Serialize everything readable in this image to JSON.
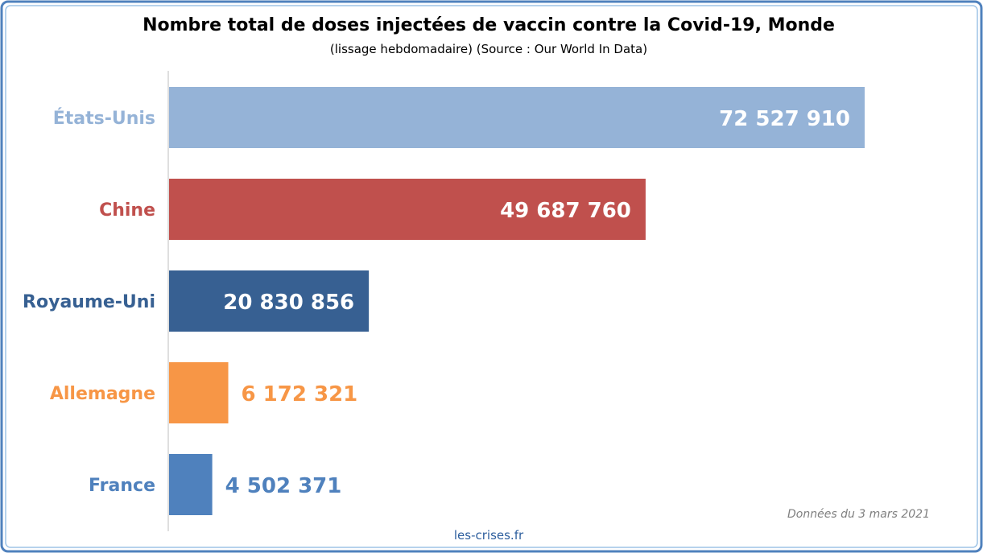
{
  "chart_data": {
    "type": "bar",
    "orientation": "horizontal",
    "title": "Nombre total de doses injectées de vaccin contre la Covid-19, Monde",
    "subtitle": "(lissage hebdomadaire) (Source : Our World In Data)",
    "categories": [
      "États-Unis",
      "Chine",
      "Royaume-Uni",
      "Allemagne",
      "France"
    ],
    "values": [
      72527910,
      49687760,
      20830856,
      6172321,
      4502371
    ],
    "value_labels": [
      "72 527 910",
      "49 687 760",
      "20 830 856",
      "6 172 321",
      "4 502 371"
    ],
    "colors": [
      "#95b3d7",
      "#c0504d",
      "#376092",
      "#f79646",
      "#4f81bd"
    ],
    "xlim": [
      0,
      72527910
    ],
    "grid": false,
    "legend": "none"
  },
  "footer": {
    "note": "Données du 3 mars 2021",
    "source": "les-crises.fr"
  },
  "colors": {
    "border": "#4f81bd",
    "axis": "#bfbfbf"
  }
}
